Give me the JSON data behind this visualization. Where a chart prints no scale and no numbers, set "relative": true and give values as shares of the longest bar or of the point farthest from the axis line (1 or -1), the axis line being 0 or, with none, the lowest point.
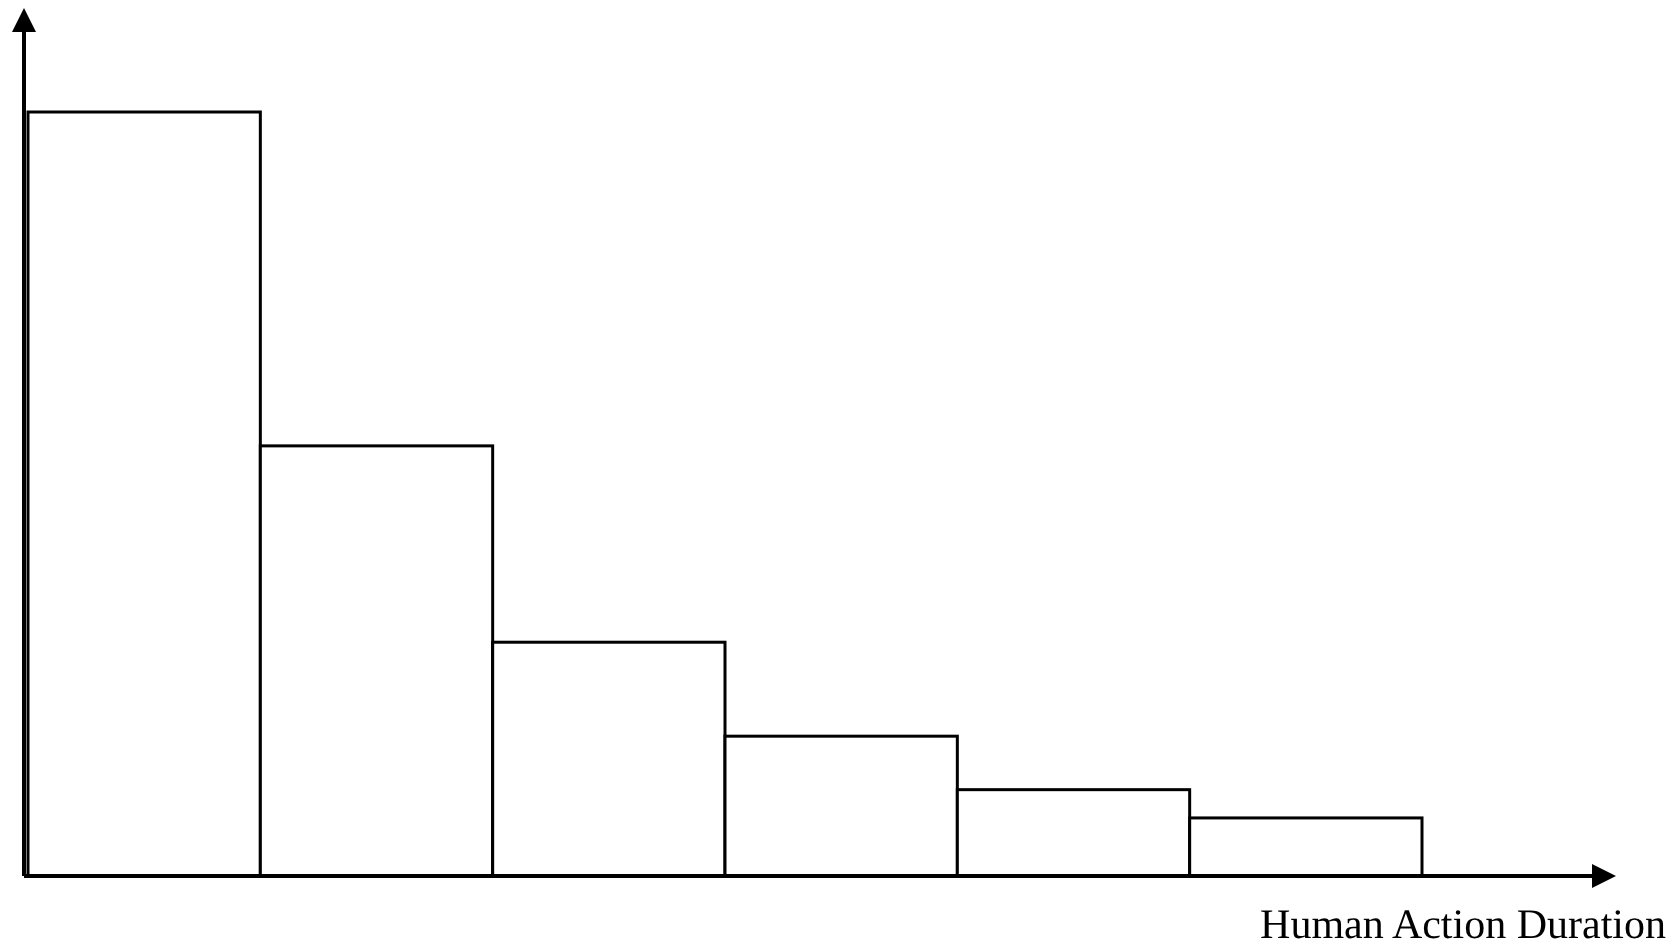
{
  "chart_data": {
    "type": "bar",
    "relative": true,
    "xlabel": "Human Action Duration",
    "categories": [
      null,
      null,
      null,
      null,
      null,
      null
    ],
    "values": [
      1,
      0.563,
      0.306,
      0.183,
      0.113,
      0.076
    ],
    "color": "#ffffff"
  }
}
